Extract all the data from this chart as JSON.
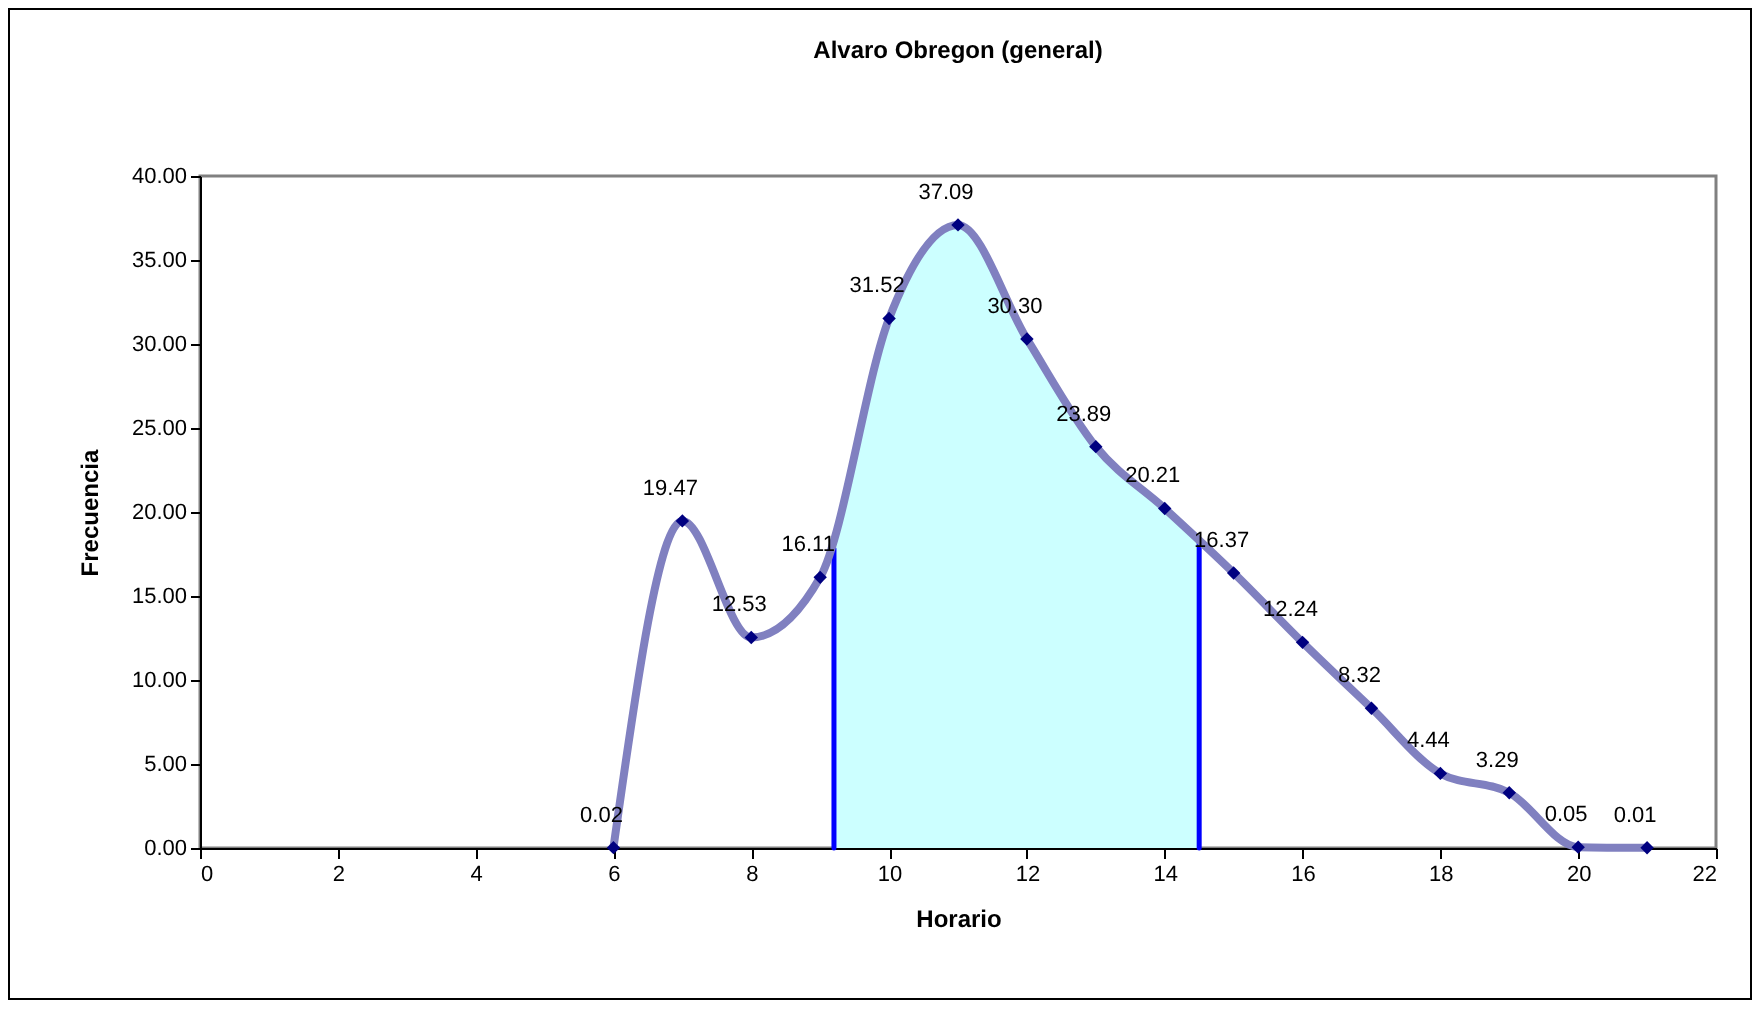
{
  "chart_data": {
    "type": "line",
    "title": "Alvaro Obregon (general)",
    "xlabel": "Horario",
    "ylabel": "Frecuencia",
    "x": [
      6,
      7,
      8,
      9,
      10,
      11,
      12,
      13,
      14,
      15,
      16,
      17,
      18,
      19,
      20,
      21
    ],
    "xlim": [
      0,
      22
    ],
    "xticks": [
      0,
      2,
      4,
      6,
      8,
      10,
      12,
      14,
      16,
      18,
      20,
      22
    ],
    "ylim": [
      0,
      40
    ],
    "yticks": [
      {
        "value": 0,
        "label": "0.00"
      },
      {
        "value": 5,
        "label": "5.00"
      },
      {
        "value": 10,
        "label": "10.00"
      },
      {
        "value": 15,
        "label": "15.00"
      },
      {
        "value": 20,
        "label": "20.00"
      },
      {
        "value": 25,
        "label": "25.00"
      },
      {
        "value": 30,
        "label": "30.00"
      },
      {
        "value": 35,
        "label": "35.00"
      },
      {
        "value": 40,
        "label": "40.00"
      }
    ],
    "grid": false,
    "line_style": "solid",
    "series": [
      {
        "type": "area",
        "color": "#ccffff",
        "x": [
          9.2,
          10,
          11,
          12,
          13,
          14,
          14.5
        ],
        "values": [
          17.8,
          31.52,
          37.09,
          30.3,
          23.89,
          20.21,
          18.2
        ]
      },
      {
        "type": "line",
        "color": "#0000ff",
        "x": [
          9.2,
          9.2
        ],
        "values": [
          0,
          17.8
        ]
      },
      {
        "type": "line",
        "color": "#0000ff",
        "x": [
          14.5,
          14.5
        ],
        "values": [
          0,
          18.2
        ]
      },
      {
        "marker": "diamond",
        "color": "#8080c0",
        "values": [
          0.02,
          19.47,
          12.53,
          16.11,
          31.52,
          37.09,
          30.3,
          23.89,
          20.21,
          16.37,
          12.24,
          8.32,
          4.44,
          3.29,
          0.05,
          0.01
        ],
        "value_labels": [
          "0.02",
          "19.47",
          "12.53",
          "16.11",
          "31.52",
          "37.09",
          "30.30",
          "23.89",
          "20.21",
          "16.37",
          "12.24",
          "8.32",
          "4.44",
          "3.29",
          "0.05",
          "0.01"
        ]
      }
    ]
  }
}
